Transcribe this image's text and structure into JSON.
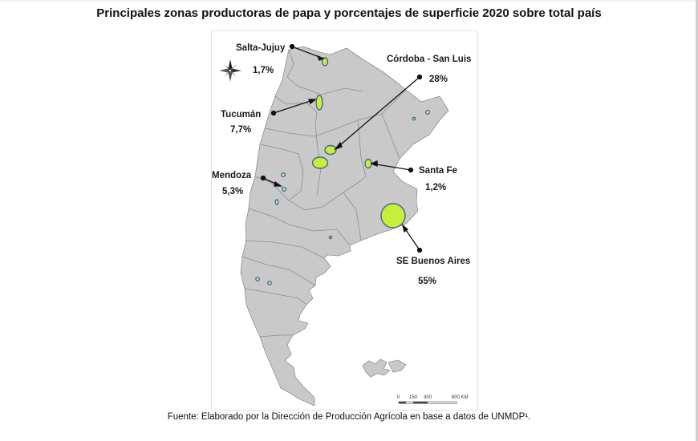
{
  "title": "Principales zonas productoras de papa y porcentajes de superficie 2020 sobre total país",
  "source": "Fuente: Elaborado por la Dirección de Producción Agrícola en base a datos de UNMDP¹.",
  "colors": {
    "land": "#c9c9c9",
    "border": "#8e8e8e",
    "zone_fill": "#c7ee3a",
    "zone_stroke": "#3f6a8f",
    "marker_stroke": "#3f6a8f"
  },
  "zones": [
    {
      "name": "Salta-Jujuy",
      "percent": "1,7%"
    },
    {
      "name": "Córdoba - San Luis",
      "percent": "28%"
    },
    {
      "name": "Tucumán",
      "percent": "7,7%"
    },
    {
      "name": "Santa Fe",
      "percent": "1,2%"
    },
    {
      "name": "Mendoza",
      "percent": "5,3%"
    },
    {
      "name": "SE Buenos Aires",
      "percent": "55%"
    }
  ],
  "compass": {
    "icon": "compass-rose-icon"
  },
  "scale_bar": {
    "ticks": [
      "0",
      "150",
      "300",
      "600 KM"
    ]
  }
}
